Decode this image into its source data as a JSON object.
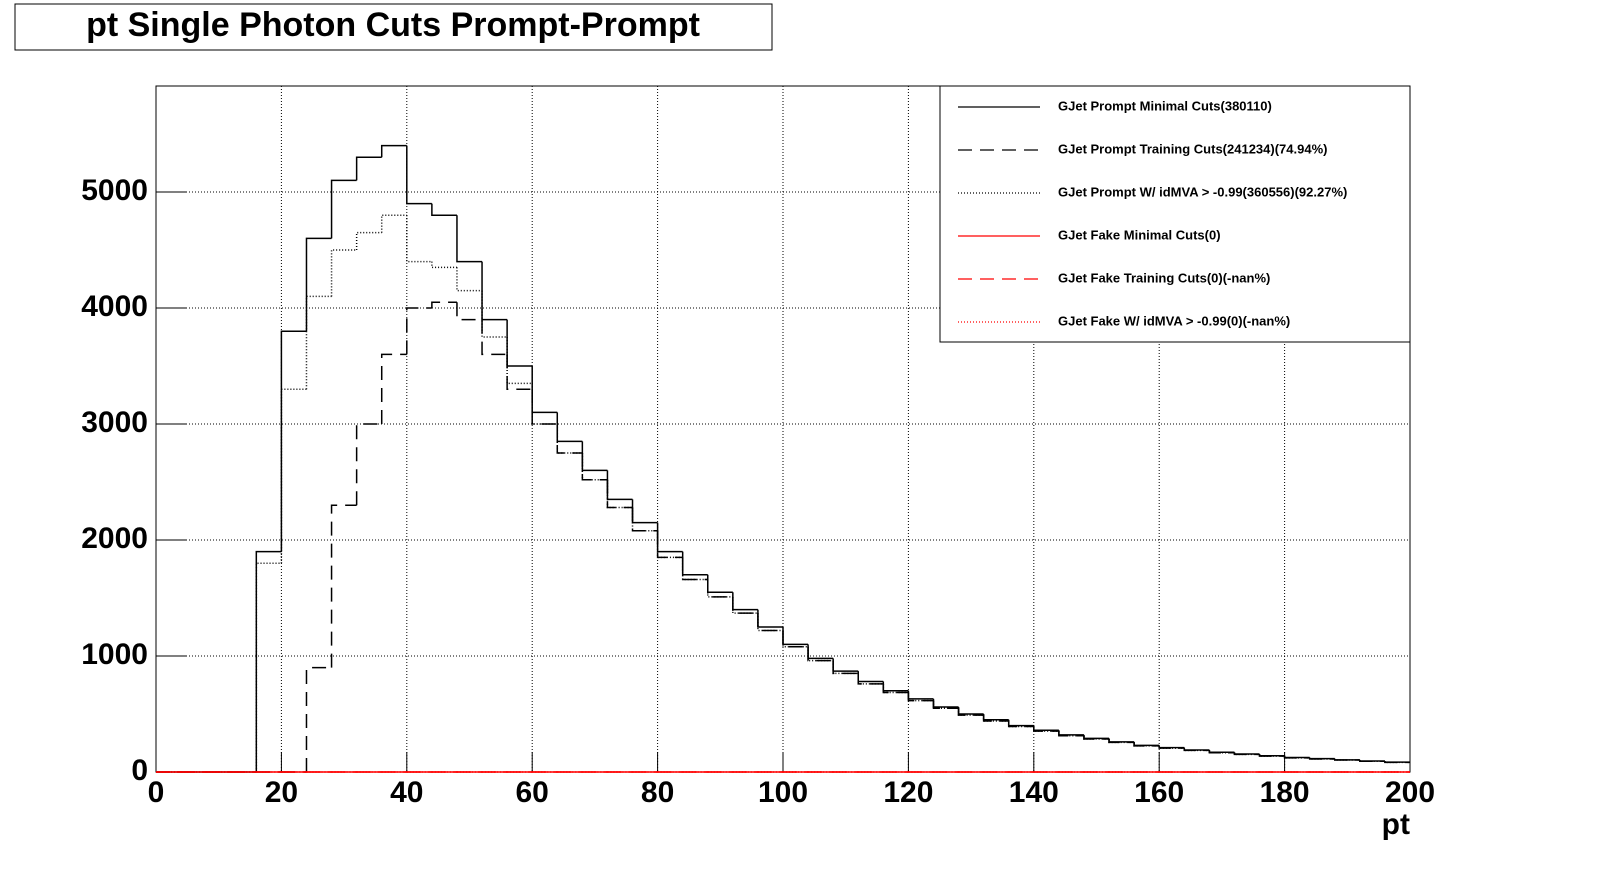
{
  "chart_data": {
    "type": "histogram",
    "title": "pt Single Photon Cuts Prompt-Prompt",
    "x_label": "pt",
    "bins": [
      0,
      4,
      8,
      12,
      16,
      20,
      24,
      28,
      32,
      36,
      40,
      44,
      48,
      52,
      56,
      60,
      64,
      68,
      72,
      76,
      80,
      84,
      88,
      92,
      96,
      100,
      104,
      108,
      112,
      116,
      120,
      124,
      128,
      132,
      136,
      140,
      144,
      148,
      152,
      156,
      160,
      164,
      168,
      172,
      176,
      180,
      184,
      188,
      192,
      196,
      200
    ],
    "series": [
      {
        "name": "GJet Prompt Minimal Cuts(380110)",
        "color": "#000000",
        "style": "solid",
        "values": [
          0,
          0,
          0,
          0,
          1900,
          3800,
          4600,
          5100,
          5300,
          5400,
          4900,
          4800,
          4400,
          3900,
          3500,
          3100,
          2850,
          2600,
          2350,
          2150,
          1900,
          1700,
          1550,
          1400,
          1250,
          1100,
          980,
          870,
          780,
          700,
          630,
          560,
          500,
          450,
          400,
          360,
          320,
          290,
          260,
          230,
          210,
          190,
          170,
          155,
          140,
          125,
          115,
          105,
          95,
          85
        ]
      },
      {
        "name": "GJet Prompt Training Cuts(241234)(74.94%)",
        "color": "#000000",
        "style": "dashed",
        "values": [
          0,
          0,
          0,
          0,
          0,
          0,
          900,
          2300,
          3000,
          3600,
          4000,
          4050,
          3900,
          3600,
          3300,
          3000,
          2750,
          2520,
          2280,
          2080,
          1850,
          1660,
          1510,
          1370,
          1220,
          1080,
          960,
          850,
          760,
          685,
          615,
          550,
          490,
          440,
          392,
          352,
          313,
          284,
          255,
          225,
          206,
          186,
          166,
          152,
          137,
          122,
          112,
          103,
          93,
          83
        ]
      },
      {
        "name": "GJet Prompt W/ idMVA > -0.99(360556)(92.27%)",
        "color": "#000000",
        "style": "dotted",
        "values": [
          0,
          0,
          0,
          0,
          1800,
          3300,
          4100,
          4500,
          4650,
          4800,
          4400,
          4350,
          4150,
          3750,
          3350,
          3000,
          2750,
          2520,
          2280,
          2080,
          1850,
          1660,
          1510,
          1370,
          1220,
          1080,
          960,
          850,
          760,
          685,
          615,
          550,
          490,
          440,
          392,
          352,
          313,
          284,
          255,
          225,
          206,
          186,
          166,
          152,
          137,
          122,
          112,
          103,
          93,
          83
        ]
      },
      {
        "name": "GJet Fake Minimal Cuts(0)",
        "color": "#ff0000",
        "style": "solid",
        "values": [
          0,
          0,
          0,
          0,
          0,
          0,
          0,
          0,
          0,
          0,
          0,
          0,
          0,
          0,
          0,
          0,
          0,
          0,
          0,
          0,
          0,
          0,
          0,
          0,
          0,
          0,
          0,
          0,
          0,
          0,
          0,
          0,
          0,
          0,
          0,
          0,
          0,
          0,
          0,
          0,
          0,
          0,
          0,
          0,
          0,
          0,
          0,
          0,
          0,
          0
        ]
      },
      {
        "name": "GJet Fake Training Cuts(0)(-nan%)",
        "color": "#ff0000",
        "style": "dashed",
        "values": [
          0,
          0,
          0,
          0,
          0,
          0,
          0,
          0,
          0,
          0,
          0,
          0,
          0,
          0,
          0,
          0,
          0,
          0,
          0,
          0,
          0,
          0,
          0,
          0,
          0,
          0,
          0,
          0,
          0,
          0,
          0,
          0,
          0,
          0,
          0,
          0,
          0,
          0,
          0,
          0,
          0,
          0,
          0,
          0,
          0,
          0,
          0,
          0,
          0,
          0
        ]
      },
      {
        "name": "GJet Fake W/ idMVA > -0.99(0)(-nan%)",
        "color": "#ff0000",
        "style": "dotted",
        "values": [
          0,
          0,
          0,
          0,
          0,
          0,
          0,
          0,
          0,
          0,
          0,
          0,
          0,
          0,
          0,
          0,
          0,
          0,
          0,
          0,
          0,
          0,
          0,
          0,
          0,
          0,
          0,
          0,
          0,
          0,
          0,
          0,
          0,
          0,
          0,
          0,
          0,
          0,
          0,
          0,
          0,
          0,
          0,
          0,
          0,
          0,
          0,
          0,
          0,
          0
        ]
      }
    ],
    "xlim": [
      0,
      200
    ],
    "xticks": [
      0,
      20,
      40,
      60,
      80,
      100,
      120,
      140,
      160,
      180,
      200
    ],
    "ylim": [
      0,
      5914
    ],
    "yticks": [
      0,
      1000,
      2000,
      3000,
      4000,
      5000
    ],
    "grid": true,
    "legend": "top-right"
  }
}
